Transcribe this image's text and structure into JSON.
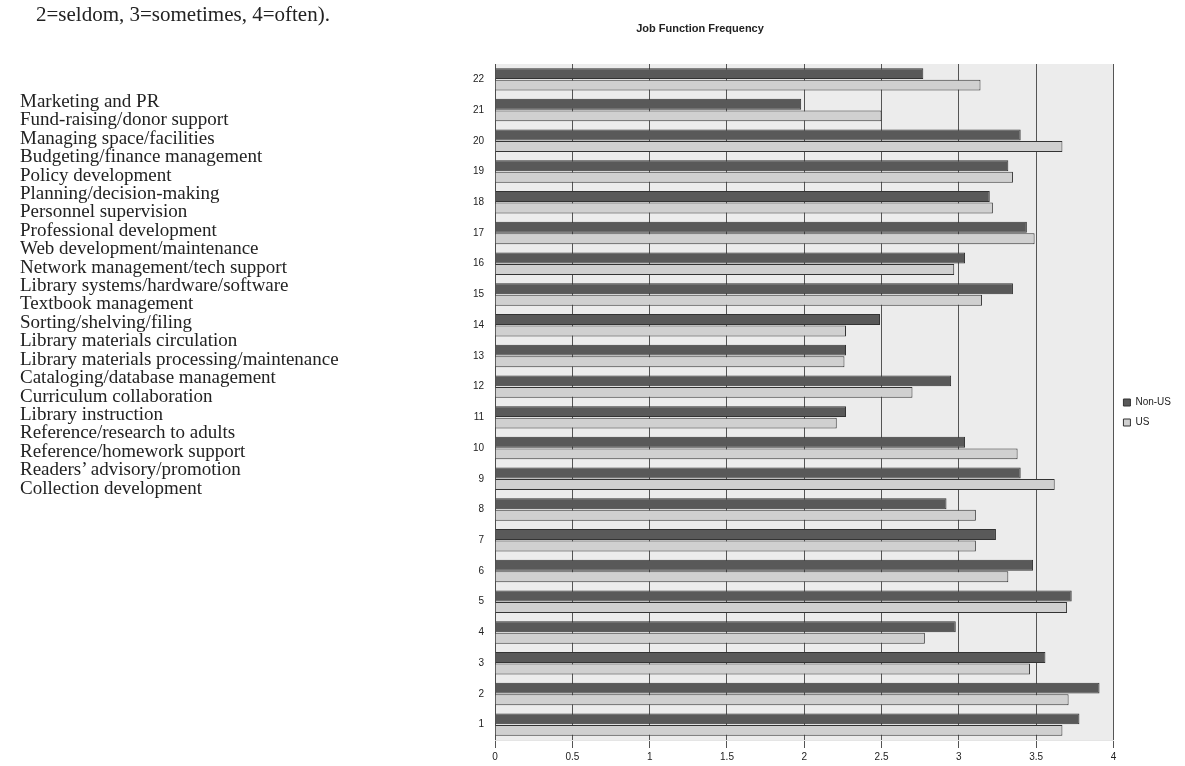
{
  "chart_data": {
    "type": "bar",
    "orientation": "horizontal",
    "title": "Job Function Frequency",
    "categories": [
      "22",
      "21",
      "20",
      "19",
      "18",
      "17",
      "16",
      "15",
      "14",
      "13",
      "12",
      "11",
      "10",
      "9",
      "8",
      "7",
      "6",
      "5",
      "4",
      "3",
      "2",
      "1"
    ],
    "series": [
      {
        "name": "Non-US",
        "color": "#595959",
        "values": [
          2.77,
          1.98,
          3.4,
          3.32,
          3.2,
          3.44,
          3.04,
          3.35,
          2.49,
          2.27,
          2.95,
          2.27,
          3.04,
          3.4,
          2.92,
          3.24,
          3.48,
          3.73,
          2.98,
          3.56,
          3.91,
          3.78
        ]
      },
      {
        "name": "US",
        "color": "#d0d0d0",
        "values": [
          3.14,
          2.5,
          3.67,
          3.35,
          3.22,
          3.49,
          2.97,
          3.15,
          2.27,
          2.26,
          2.7,
          2.21,
          3.38,
          3.62,
          3.11,
          3.11,
          3.32,
          3.7,
          2.78,
          3.46,
          3.71,
          3.67
        ]
      }
    ],
    "xlim": [
      0,
      4
    ],
    "xticks": [
      0,
      0.5,
      1,
      1.5,
      2,
      2.5,
      3,
      3.5,
      4
    ],
    "grid": "x",
    "legend": "right",
    "annotations": [
      "2=seldom, 3=sometimes, 4=often).",
      "Marketing and PR",
      "Fund-raising/donor support",
      "Managing space/facilities",
      "Budgeting/finance management",
      "Policy development",
      "Planning/decision-making",
      "Personnel supervision",
      "Professional development",
      "Web development/maintenance",
      "Network management/tech support",
      "Library systems/hardware/software",
      "Textbook management",
      "Sorting/shelving/filing",
      "Library materials circulation",
      "Library materials processing/maintenance",
      "Cataloging/database management",
      "Curriculum collaboration",
      "Library instruction",
      "Reference/research to adults",
      "Reference/homework support",
      "Readers’ advisory/promotion",
      "Collection development"
    ]
  }
}
